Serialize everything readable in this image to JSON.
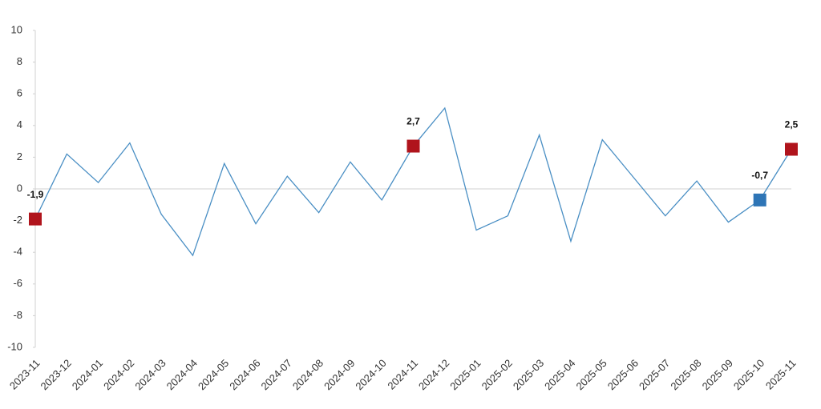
{
  "chart_data": {
    "type": "line",
    "categories": [
      "2023-11",
      "2023-12",
      "2024-01",
      "2024-02",
      "2024-03",
      "2024-04",
      "2024-05",
      "2024-06",
      "2024-07",
      "2024-08",
      "2024-09",
      "2024-10",
      "2024-11",
      "2024-12",
      "2025-01",
      "2025-02",
      "2025-03",
      "2025-04",
      "2025-05",
      "2025-06",
      "2025-07",
      "2025-08",
      "2025-09",
      "2025-10",
      "2025-11"
    ],
    "values": [
      -1.9,
      2.2,
      0.4,
      2.9,
      -1.6,
      -4.2,
      1.6,
      -2.2,
      0.8,
      -1.5,
      1.7,
      -0.7,
      2.7,
      5.1,
      -2.6,
      -1.7,
      3.4,
      -3.3,
      3.1,
      0.7,
      -1.7,
      0.5,
      -2.1,
      -0.7,
      2.5
    ],
    "value_labels": [
      "-1,9",
      null,
      null,
      null,
      null,
      null,
      null,
      null,
      null,
      null,
      null,
      null,
      "2,7",
      null,
      null,
      null,
      null,
      null,
      null,
      null,
      null,
      null,
      null,
      "-0,7",
      "2,5"
    ],
    "marker_colors": [
      "#b0141c",
      null,
      null,
      null,
      null,
      null,
      null,
      null,
      null,
      null,
      null,
      null,
      "#b0141c",
      null,
      null,
      null,
      null,
      null,
      null,
      null,
      null,
      null,
      null,
      "#2e75b6",
      "#b0141c"
    ],
    "color": "#4a8fc4",
    "ylim": [
      -10,
      10
    ],
    "yticks": [
      -10,
      -8,
      -6,
      -4,
      -2,
      0,
      2,
      4,
      6,
      8,
      10
    ]
  }
}
